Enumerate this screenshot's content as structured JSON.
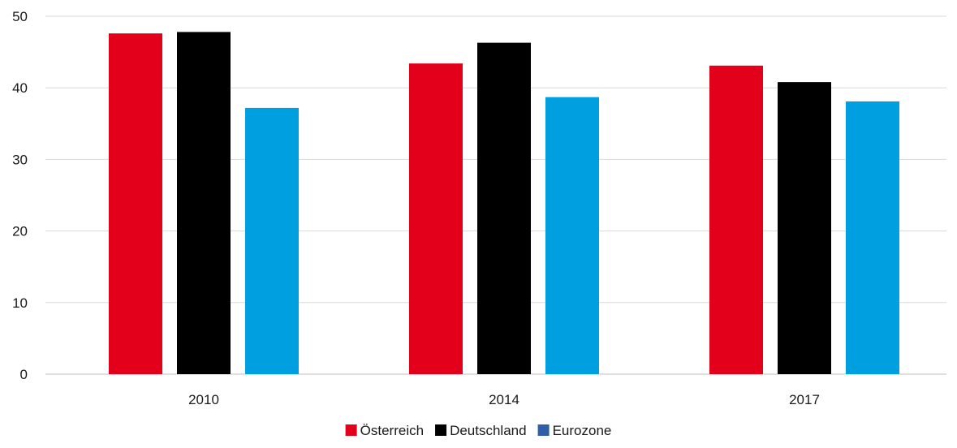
{
  "chart_data": {
    "type": "bar",
    "categories": [
      "2010",
      "2014",
      "2017"
    ],
    "series": [
      {
        "name": "Österreich",
        "values": [
          47.6,
          43.4,
          43.1
        ],
        "color": "#e2001a"
      },
      {
        "name": "Deutschland",
        "values": [
          47.8,
          46.3,
          40.8
        ],
        "color": "#000000"
      },
      {
        "name": "Eurozone",
        "values": [
          37.2,
          38.7,
          38.1
        ],
        "color": "#009fe0",
        "legend_color": "#2e5fa8"
      }
    ],
    "ylim": [
      0,
      50
    ],
    "yticks": [
      0,
      10,
      20,
      30,
      40,
      50
    ],
    "grid": true,
    "legend_position": "bottom-center"
  }
}
